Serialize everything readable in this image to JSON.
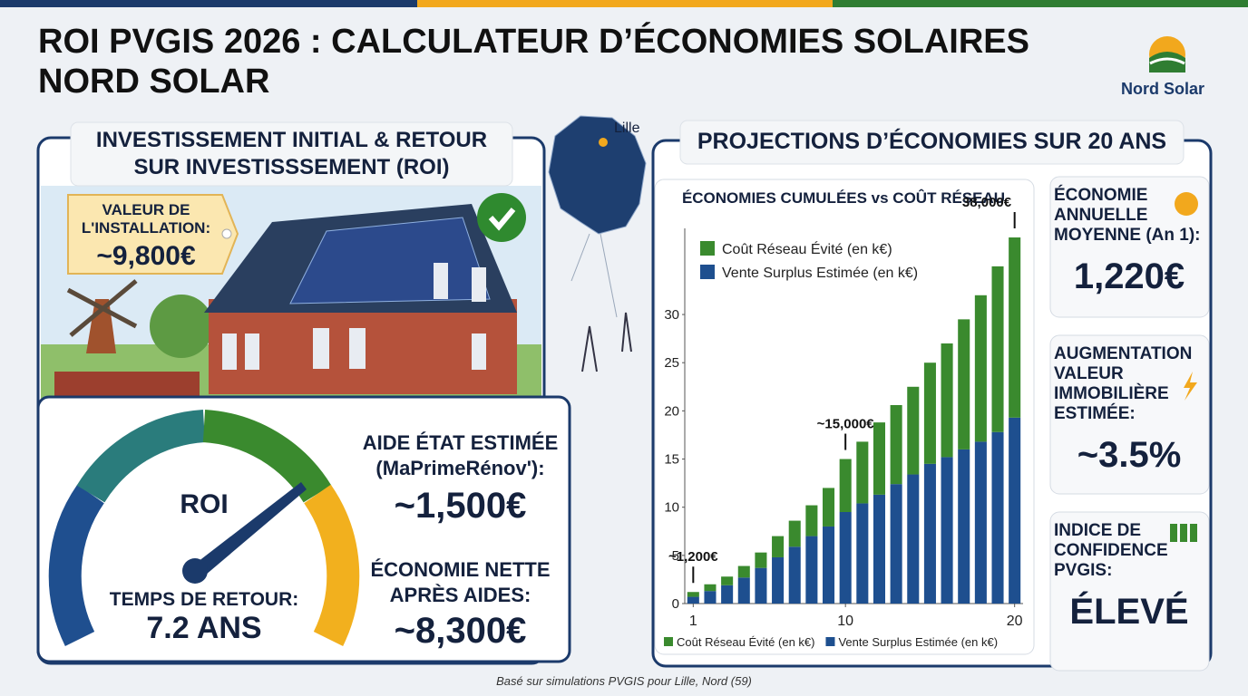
{
  "header": {
    "title_lines": [
      "ROI PVGIS 2026 : CALCULATEUR D’ÉCONOMIES SOLAIRES",
      "NORD SOLAR"
    ],
    "brand": "Nord Solar"
  },
  "map_label": "Lille",
  "investment": {
    "title_lines": [
      "INVESTISSEMENT INITIAL & RETOUR",
      "SUR INVESTISSSEMENT (ROI)"
    ],
    "install_label_lines": [
      "VALEUR DE",
      "L'INSTALLATION:"
    ],
    "install_value": "~9,800€",
    "gauge_label": "ROI",
    "payback_label": "TEMPS DE RETOUR:",
    "payback_value": "7.2 ANS",
    "aid_label_lines": [
      "AIDE ÉTAT ESTIMÉE",
      "(MaPrimeRénov'):"
    ],
    "aid_value": "~1,500€",
    "net_label_lines": [
      "ÉCONOMIE NETTE",
      "APRÈS AIDES:"
    ],
    "net_value": "~8,300€"
  },
  "projections": {
    "title": "PROJECTIONS D’ÉCONOMIES SUR 20 ANS",
    "cards": [
      {
        "label_lines": [
          "ÉCONOMIE",
          "ANNUELLE",
          "MOYENNE (An 1):"
        ],
        "value": "1,220€"
      },
      {
        "label_lines": [
          "AUGMENTATION",
          "VALEUR",
          "IMMOBILIÈRE",
          "ESTIMÉE:"
        ],
        "value": "~3.5%"
      },
      {
        "label_lines": [
          "INDICE DE",
          "CONFIDENCE",
          "PVGIS:"
        ],
        "value": "ÉLEVÉ"
      }
    ]
  },
  "chart_data": {
    "type": "stacked_bar",
    "title": "ÉCONOMIES CUMULÉES vs COÛT RÉSEAU",
    "x": [
      1,
      2,
      3,
      4,
      5,
      6,
      7,
      8,
      9,
      10,
      11,
      12,
      13,
      14,
      15,
      16,
      17,
      18,
      19,
      20
    ],
    "xlim": [
      0.5,
      20.5
    ],
    "xticks": [
      1,
      10,
      20
    ],
    "ylim": [
      0,
      38
    ],
    "yticks": [
      0,
      5,
      10,
      15,
      20,
      25,
      30
    ],
    "series": [
      {
        "name": "Vente Surplus Estimée (en k€)",
        "color": "#1e4f8f",
        "values": [
          0.7,
          1.3,
          1.9,
          2.7,
          3.7,
          4.8,
          5.9,
          7.0,
          8.0,
          9.5,
          10.4,
          11.3,
          12.4,
          13.4,
          14.5,
          15.2,
          16.0,
          16.8,
          17.8,
          19.3
        ]
      },
      {
        "name": "Coût Réseau Évité (en k€)",
        "color": "#3a8a2e",
        "values": [
          0.5,
          0.7,
          0.9,
          1.2,
          1.6,
          2.2,
          2.7,
          3.2,
          4.0,
          5.5,
          6.4,
          7.5,
          8.2,
          9.1,
          10.5,
          11.8,
          13.5,
          15.2,
          17.2,
          18.7
        ]
      }
    ],
    "annotations": [
      {
        "text": "~1,200€",
        "x": 1
      },
      {
        "text": "~15,000€",
        "x": 10
      },
      {
        "text": "38,000€",
        "x": 20
      }
    ]
  },
  "footer": "Basé sur simulations PVGIS pour Lille, Nord (59)"
}
